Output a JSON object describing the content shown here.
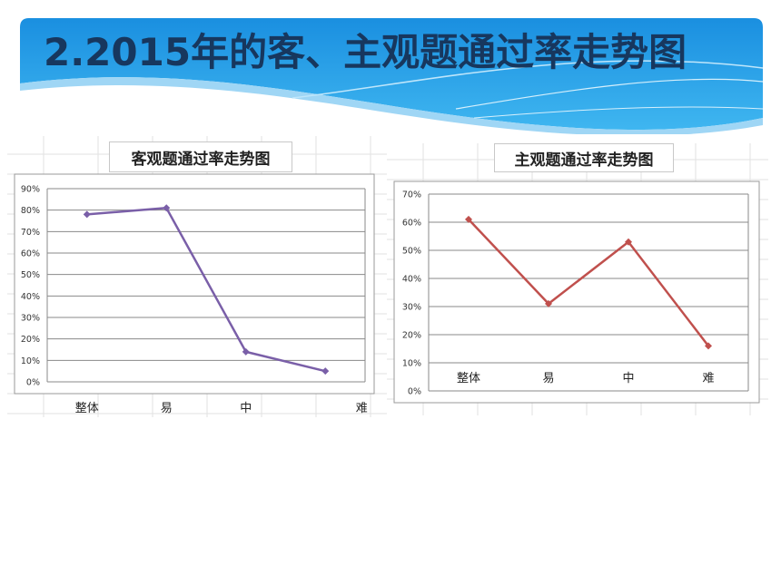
{
  "slide": {
    "title": "2.2015年的客、主观题通过率走势图",
    "accent": "#1e9be3",
    "title_color": "#17375e"
  },
  "chart_data": [
    {
      "type": "line",
      "title": "客观题通过率走势图",
      "categories": [
        "整体",
        "易",
        "中",
        "难"
      ],
      "series": [
        {
          "values": [
            78,
            81,
            14,
            5
          ],
          "color": "#7a5fa8"
        }
      ],
      "y_unit": "%",
      "ylim": [
        0,
        90
      ],
      "y_ticks": [
        "0%",
        "10%",
        "20%",
        "30%",
        "40%",
        "50%",
        "60%",
        "70%",
        "80%",
        "90%"
      ],
      "grid": true,
      "legend": "none"
    },
    {
      "type": "line",
      "title": "主观题通过率走势图",
      "categories": [
        "整体",
        "易",
        "中",
        "难"
      ],
      "series": [
        {
          "values": [
            61,
            31,
            53,
            16
          ],
          "color": "#c0504d"
        }
      ],
      "y_unit": "%",
      "ylim": [
        0,
        70
      ],
      "y_ticks": [
        "0%",
        "10%",
        "20%",
        "30%",
        "40%",
        "50%",
        "60%",
        "70%"
      ],
      "grid": true,
      "legend": "none"
    }
  ]
}
